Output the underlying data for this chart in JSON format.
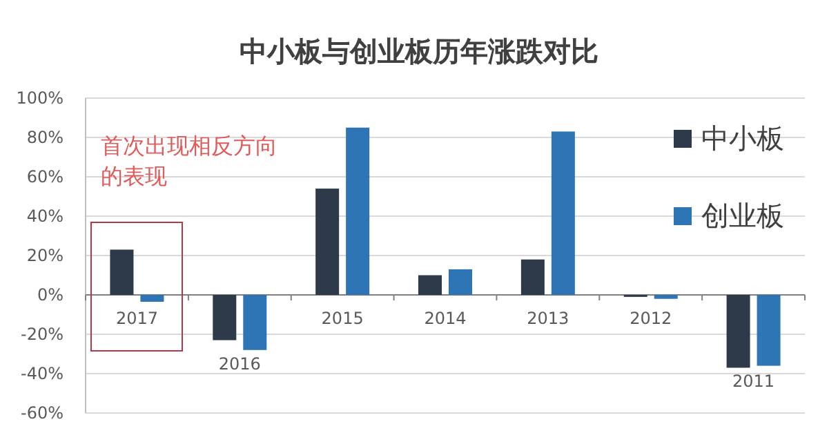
{
  "chart_data": {
    "type": "bar",
    "title": "中小板与创业板历年涨跌对比",
    "categories": [
      "2017",
      "2016",
      "2015",
      "2014",
      "2013",
      "2012",
      "2011"
    ],
    "series": [
      {
        "name": "中小板",
        "color": "#2e3a4a",
        "values": [
          23,
          -23,
          54,
          10,
          18,
          -1,
          -37
        ]
      },
      {
        "name": "创业板",
        "color": "#2e75b6",
        "values": [
          -3.5,
          -28,
          85,
          13,
          83,
          -2,
          -36
        ]
      }
    ],
    "ylim": [
      -60,
      100
    ],
    "yticks": [
      {
        "value": -60,
        "label": "-60%"
      },
      {
        "value": -40,
        "label": "-40%"
      },
      {
        "value": -20,
        "label": "-20%"
      },
      {
        "value": 0,
        "label": "0%"
      },
      {
        "value": 20,
        "label": "20%"
      },
      {
        "value": 40,
        "label": "40%"
      },
      {
        "value": 60,
        "label": "60%"
      },
      {
        "value": 80,
        "label": "80%"
      },
      {
        "value": 100,
        "label": "100%"
      }
    ],
    "grid": "y",
    "legend": "top right",
    "annotations": [
      "首次出现相反方向的表现"
    ]
  }
}
